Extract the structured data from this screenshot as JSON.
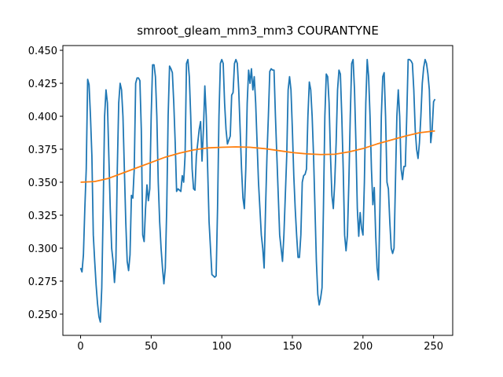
{
  "chart_data": {
    "type": "line",
    "title": "smroot_gleam_mm3_mm3 COURANTYNE",
    "xlim": [
      -12.55,
      263.55
    ],
    "xticks": [
      0,
      50,
      100,
      150,
      200,
      250
    ],
    "ylim": [
      0.2339,
      0.4536
    ],
    "yticks": [
      {
        "value": 0.25,
        "label": "0.250"
      },
      {
        "value": 0.275,
        "label": "0.275"
      },
      {
        "value": 0.3,
        "label": "0.300"
      },
      {
        "value": 0.325,
        "label": "0.325"
      },
      {
        "value": 0.35,
        "label": "0.350"
      },
      {
        "value": 0.375,
        "label": "0.375"
      },
      {
        "value": 0.4,
        "label": "0.400"
      },
      {
        "value": 0.425,
        "label": "0.425"
      },
      {
        "value": 0.45,
        "label": "0.450"
      }
    ],
    "series": [
      {
        "color": "#1f77b4",
        "x": [
          0,
          1,
          2,
          3,
          4,
          5,
          6,
          7,
          8,
          9,
          10,
          11,
          12,
          13,
          14,
          15,
          16,
          17,
          18,
          19,
          20,
          21,
          22,
          23,
          24,
          25,
          26,
          27,
          28,
          29,
          30,
          31,
          32,
          33,
          34,
          35,
          36,
          37,
          38,
          39,
          40,
          41,
          42,
          43,
          44,
          45,
          46,
          47,
          48,
          49,
          50,
          51,
          52,
          53,
          54,
          55,
          56,
          57,
          58,
          59,
          60,
          61,
          62,
          63,
          64,
          65,
          66,
          67,
          68,
          69,
          70,
          71,
          72,
          73,
          74,
          75,
          76,
          77,
          78,
          79,
          80,
          81,
          82,
          83,
          84,
          85,
          86,
          87,
          88,
          89,
          90,
          91,
          92,
          93,
          94,
          95,
          96,
          97,
          98,
          99,
          100,
          101,
          102,
          103,
          104,
          105,
          106,
          107,
          108,
          109,
          110,
          111,
          112,
          113,
          114,
          115,
          116,
          117,
          118,
          119,
          120,
          121,
          122,
          123,
          124,
          125,
          126,
          127,
          128,
          129,
          130,
          131,
          132,
          133,
          134,
          135,
          136,
          137,
          138,
          139,
          140,
          141,
          142,
          143,
          144,
          145,
          146,
          147,
          148,
          149,
          150,
          151,
          152,
          153,
          154,
          155,
          156,
          157,
          158,
          159,
          160,
          161,
          162,
          163,
          164,
          165,
          166,
          167,
          168,
          169,
          170,
          171,
          172,
          173,
          174,
          175,
          176,
          177,
          178,
          179,
          180,
          181,
          182,
          183,
          184,
          185,
          186,
          187,
          188,
          189,
          190,
          191,
          192,
          193,
          194,
          195,
          196,
          197,
          198,
          199,
          200,
          201,
          202,
          203,
          204,
          205,
          206,
          207,
          208,
          209,
          210,
          211,
          212,
          213,
          214,
          215,
          216,
          217,
          218,
          219,
          220,
          221,
          222,
          223,
          224,
          225,
          226,
          227,
          228,
          229,
          230,
          231,
          232,
          233,
          234,
          235,
          236,
          237,
          238,
          239,
          240,
          241,
          242,
          243,
          244,
          245,
          246,
          247,
          248,
          249,
          250,
          251
        ],
        "values": [
          0.285,
          0.282,
          0.295,
          0.33,
          0.36,
          0.428,
          0.424,
          0.4,
          0.37,
          0.31,
          0.29,
          0.272,
          0.258,
          0.248,
          0.244,
          0.27,
          0.33,
          0.4,
          0.42,
          0.41,
          0.37,
          0.33,
          0.3,
          0.29,
          0.274,
          0.29,
          0.36,
          0.41,
          0.425,
          0.42,
          0.4,
          0.36,
          0.32,
          0.29,
          0.283,
          0.295,
          0.34,
          0.338,
          0.36,
          0.425,
          0.429,
          0.429,
          0.427,
          0.39,
          0.31,
          0.305,
          0.33,
          0.348,
          0.336,
          0.345,
          0.4,
          0.439,
          0.439,
          0.43,
          0.4,
          0.35,
          0.32,
          0.3,
          0.285,
          0.273,
          0.285,
          0.33,
          0.4,
          0.438,
          0.436,
          0.433,
          0.41,
          0.38,
          0.343,
          0.345,
          0.344,
          0.343,
          0.355,
          0.35,
          0.37,
          0.44,
          0.443,
          0.43,
          0.4,
          0.36,
          0.345,
          0.344,
          0.37,
          0.38,
          0.39,
          0.396,
          0.366,
          0.39,
          0.423,
          0.4,
          0.36,
          0.32,
          0.3,
          0.28,
          0.279,
          0.278,
          0.279,
          0.33,
          0.4,
          0.44,
          0.443,
          0.44,
          0.41,
          0.39,
          0.379,
          0.382,
          0.385,
          0.416,
          0.418,
          0.44,
          0.443,
          0.44,
          0.42,
          0.39,
          0.36,
          0.338,
          0.33,
          0.36,
          0.41,
          0.435,
          0.425,
          0.436,
          0.42,
          0.43,
          0.41,
          0.38,
          0.35,
          0.33,
          0.31,
          0.3,
          0.285,
          0.33,
          0.37,
          0.4,
          0.434,
          0.436,
          0.435,
          0.435,
          0.4,
          0.37,
          0.34,
          0.31,
          0.3,
          0.29,
          0.31,
          0.34,
          0.37,
          0.42,
          0.43,
          0.42,
          0.39,
          0.355,
          0.33,
          0.31,
          0.293,
          0.293,
          0.31,
          0.35,
          0.355,
          0.356,
          0.36,
          0.4,
          0.426,
          0.42,
          0.4,
          0.37,
          0.33,
          0.29,
          0.265,
          0.257,
          0.262,
          0.27,
          0.33,
          0.4,
          0.432,
          0.43,
          0.41,
          0.37,
          0.34,
          0.33,
          0.35,
          0.38,
          0.42,
          0.435,
          0.432,
          0.4,
          0.36,
          0.31,
          0.298,
          0.31,
          0.35,
          0.4,
          0.44,
          0.443,
          0.42,
          0.38,
          0.33,
          0.309,
          0.327,
          0.315,
          0.31,
          0.35,
          0.41,
          0.443,
          0.43,
          0.4,
          0.36,
          0.333,
          0.346,
          0.31,
          0.285,
          0.276,
          0.33,
          0.4,
          0.43,
          0.433,
          0.4,
          0.35,
          0.345,
          0.32,
          0.3,
          0.296,
          0.3,
          0.35,
          0.4,
          0.42,
          0.4,
          0.36,
          0.352,
          0.362,
          0.362,
          0.4,
          0.443,
          0.443,
          0.442,
          0.44,
          0.42,
          0.39,
          0.375,
          0.368,
          0.38,
          0.4,
          0.425,
          0.437,
          0.443,
          0.44,
          0.432,
          0.42,
          0.38,
          0.39,
          0.411,
          0.413
        ]
      },
      {
        "color": "#ff7f0e",
        "x": [
          0,
          10,
          20,
          30,
          40,
          50,
          60,
          70,
          80,
          90,
          100,
          110,
          120,
          130,
          140,
          150,
          160,
          170,
          180,
          190,
          200,
          210,
          220,
          230,
          240,
          250,
          251
        ],
        "values": [
          0.35,
          0.3505,
          0.353,
          0.357,
          0.361,
          0.365,
          0.369,
          0.372,
          0.3745,
          0.376,
          0.3765,
          0.3768,
          0.3765,
          0.3755,
          0.374,
          0.3725,
          0.3715,
          0.371,
          0.3712,
          0.373,
          0.3755,
          0.379,
          0.382,
          0.385,
          0.3875,
          0.3888,
          0.3889
        ]
      }
    ]
  }
}
